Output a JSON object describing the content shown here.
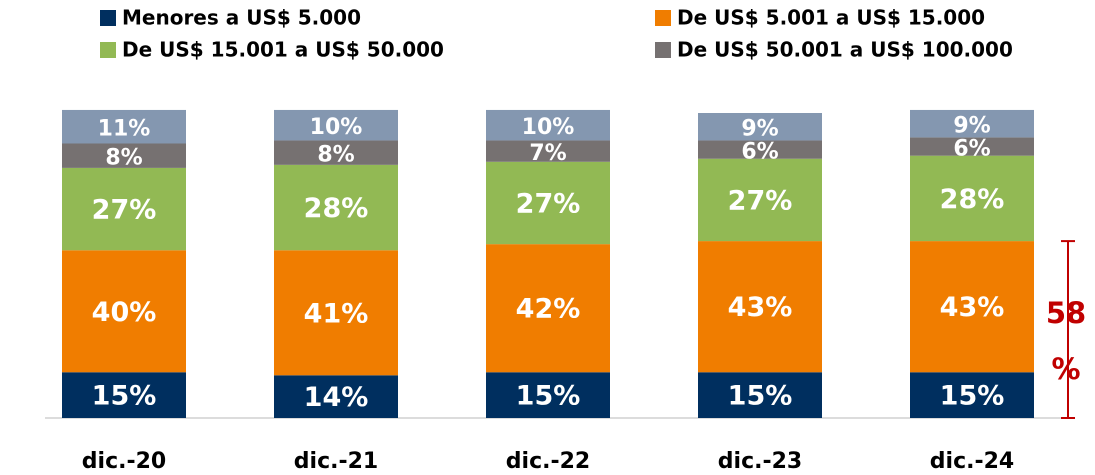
{
  "chart_data": {
    "type": "stacked_bar",
    "categories": [
      "dic.-20",
      "dic.-21",
      "dic.-22",
      "dic.-23",
      "dic.-24"
    ],
    "series": [
      {
        "name": "Menores a US$ 5.000",
        "color": "#002f5f",
        "values": [
          15,
          14,
          15,
          15,
          15
        ],
        "value_labels": [
          "15%",
          "14%",
          "15%",
          "15%",
          "15%"
        ]
      },
      {
        "name": "De US$ 5.001 a US$ 15.000",
        "color": "#f07d00",
        "values": [
          40,
          41,
          42,
          43,
          43
        ],
        "value_labels": [
          "40%",
          "41%",
          "42%",
          "43%",
          "43%"
        ]
      },
      {
        "name": "De US$ 15.001 a US$ 50.000",
        "color": "#92b954",
        "values": [
          27,
          28,
          27,
          27,
          28
        ],
        "value_labels": [
          "27%",
          "28%",
          "27%",
          "27%",
          "28%"
        ]
      },
      {
        "name": "De US$ 50.001 a US$ 100.000",
        "color": "#767171",
        "values": [
          8,
          8,
          7,
          6,
          6
        ],
        "value_labels": [
          "8%",
          "8%",
          "7%",
          "6%",
          "6%"
        ]
      },
      {
        "color": "#8497b0",
        "values": [
          11,
          10,
          10,
          9,
          9
        ],
        "value_labels": [
          "11%",
          "10%",
          "10%",
          "9%",
          "9%"
        ]
      }
    ],
    "annotation": "58 %",
    "annotation_color": "#c00000"
  }
}
